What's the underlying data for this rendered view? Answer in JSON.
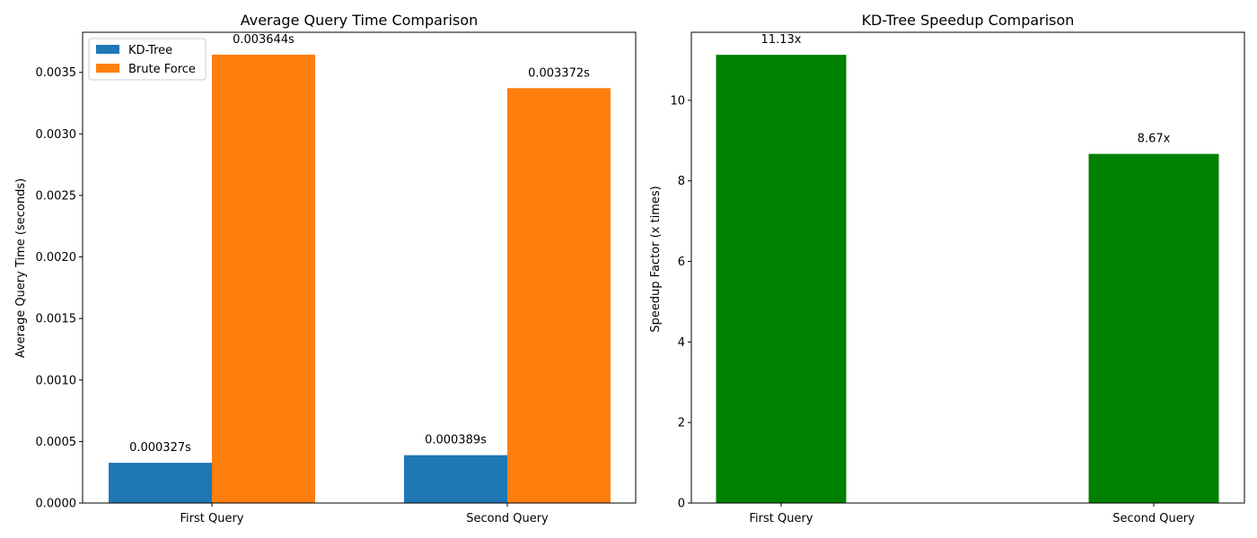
{
  "chart_data": [
    {
      "type": "bar",
      "title": "Average Query Time Comparison",
      "xlabel": "",
      "ylabel": "Average Query Time (seconds)",
      "categories": [
        "First Query",
        "Second Query"
      ],
      "series": [
        {
          "name": "KD-Tree",
          "values": [
            0.000327,
            0.000389
          ],
          "labels": [
            "0.000327s",
            "0.000389s"
          ],
          "color": "#1f77b4"
        },
        {
          "name": "Brute Force",
          "values": [
            0.003644,
            0.003372
          ],
          "labels": [
            "0.003644s",
            "0.003372s"
          ],
          "color": "#ff7f0e"
        }
      ],
      "ylim": [
        0,
        0.003826
      ],
      "yticks": [
        0,
        0.0005,
        0.001,
        0.0015,
        0.002,
        0.0025,
        0.003,
        0.0035
      ],
      "ytick_labels": [
        "0.0000",
        "0.0005",
        "0.0010",
        "0.0015",
        "0.0020",
        "0.0025",
        "0.0030",
        "0.0035"
      ],
      "legend": "top-left",
      "grid": false
    },
    {
      "type": "bar",
      "title": "KD-Tree Speedup Comparison",
      "xlabel": "",
      "ylabel": "Speedup Factor (x times)",
      "categories": [
        "First Query",
        "Second Query"
      ],
      "series": [
        {
          "values": [
            11.13,
            8.67
          ],
          "labels": [
            "11.13x",
            "8.67x"
          ],
          "color": "#008000"
        }
      ],
      "ylim": [
        0,
        11.69
      ],
      "yticks": [
        0,
        2,
        4,
        6,
        8,
        10
      ],
      "ytick_labels": [
        "0",
        "2",
        "4",
        "6",
        "8",
        "10"
      ],
      "grid": false
    }
  ]
}
